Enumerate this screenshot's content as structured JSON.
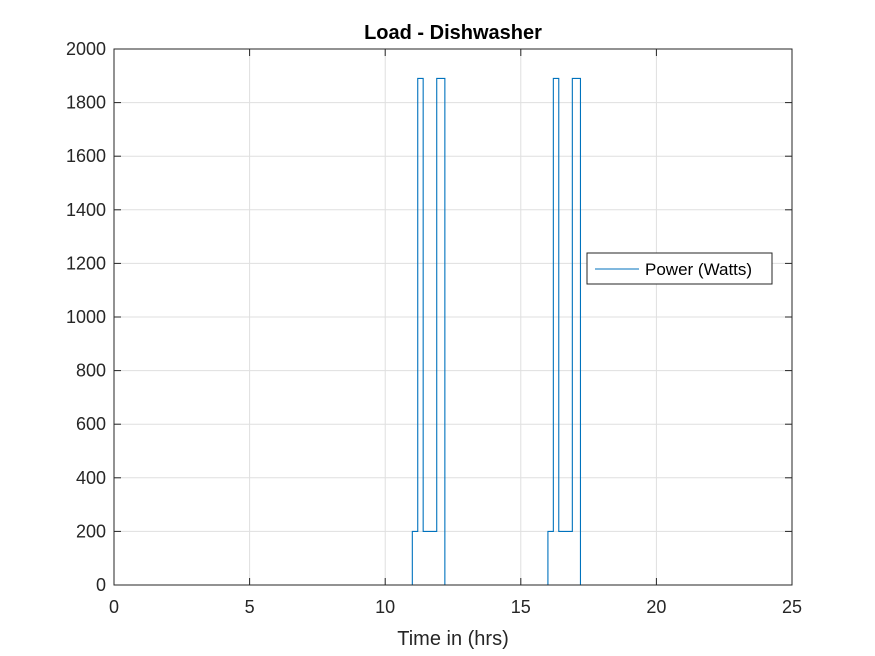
{
  "chart_data": {
    "type": "line",
    "title": "Load - Dishwasher",
    "xlabel": "Time in (hrs)",
    "ylabel": "",
    "xlim": [
      0,
      25
    ],
    "ylim": [
      0,
      2000
    ],
    "xticks": [
      0,
      5,
      10,
      15,
      20,
      25
    ],
    "yticks": [
      0,
      200,
      400,
      600,
      800,
      1000,
      1200,
      1400,
      1600,
      1800,
      2000
    ],
    "grid": true,
    "legend": {
      "entries": [
        "Power (Watts)"
      ],
      "placement": "right"
    },
    "series": [
      {
        "name": "Power (Watts)",
        "color": "#0072BD",
        "step": true,
        "x": [
          0,
          11.0,
          11.2,
          11.4,
          11.9,
          12.2,
          16.0,
          16.2,
          16.4,
          16.9,
          17.2,
          24
        ],
        "y": [
          0,
          200,
          1890,
          200,
          1890,
          0,
          200,
          1890,
          200,
          1890,
          0,
          0
        ]
      }
    ]
  }
}
